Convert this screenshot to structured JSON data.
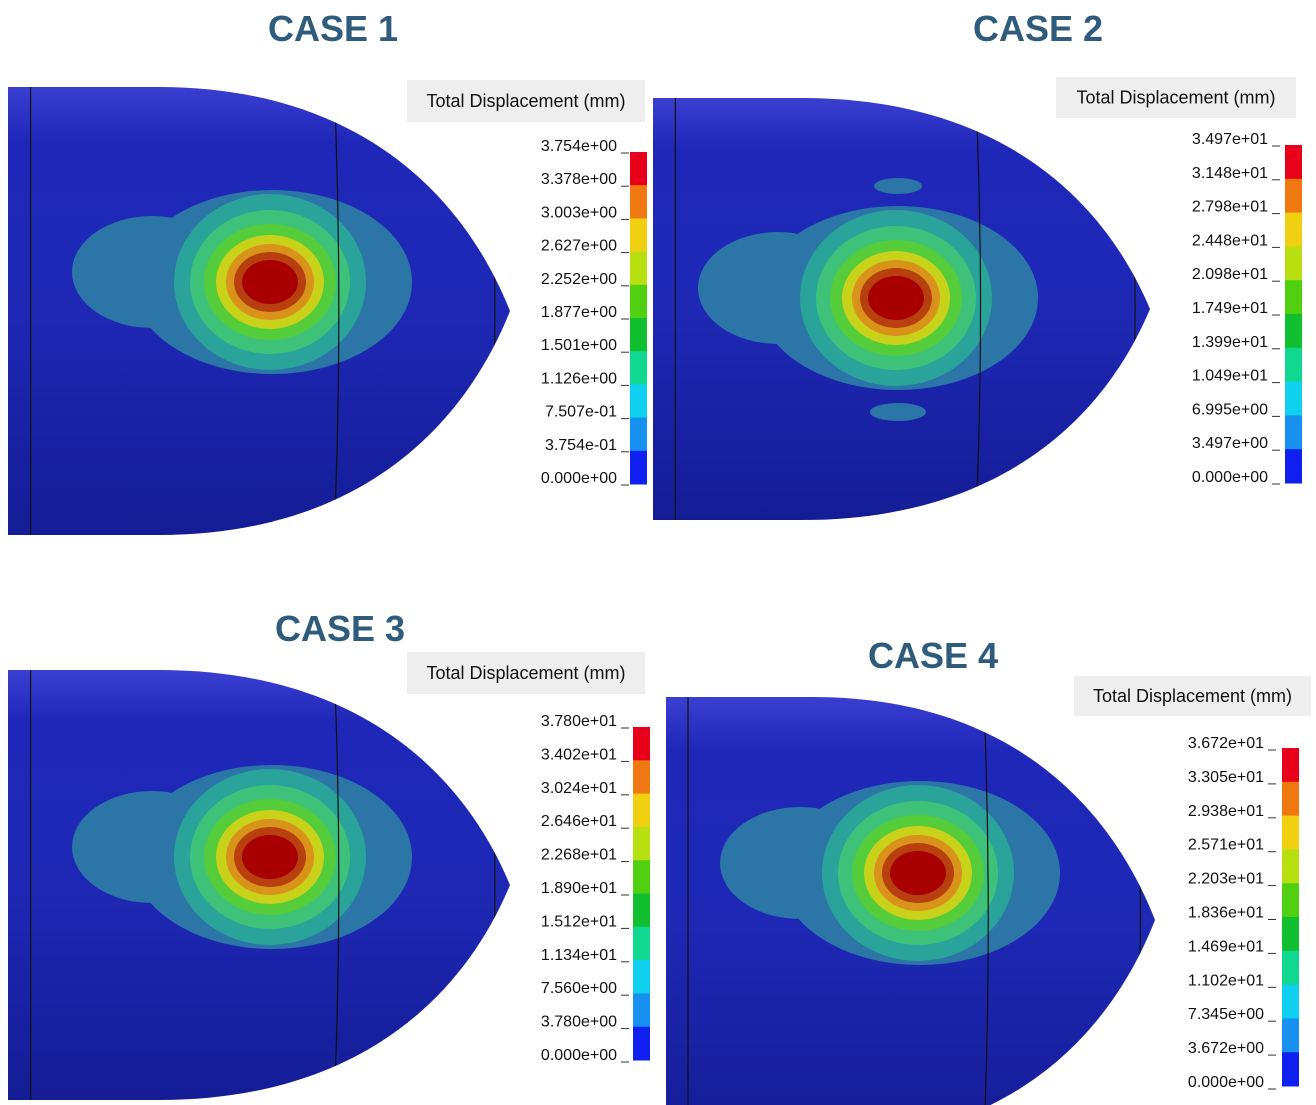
{
  "panels": [
    {
      "title": "CASE 1",
      "legend_title": "Total Displacement (mm)",
      "legend_labels": [
        "3.754e+00",
        "3.378e+00",
        "3.003e+00",
        "2.627e+00",
        "2.252e+00",
        "1.877e+00",
        "1.501e+00",
        "1.126e+00",
        "7.507e-01",
        "3.754e-01",
        "0.000e+00"
      ]
    },
    {
      "title": "CASE 2",
      "legend_title": "Total Displacement (mm)",
      "legend_labels": [
        "3.497e+01",
        "3.148e+01",
        "2.798e+01",
        "2.448e+01",
        "2.098e+01",
        "1.749e+01",
        "1.399e+01",
        "1.049e+01",
        "6.995e+00",
        "3.497e+00",
        "0.000e+00"
      ]
    },
    {
      "title": "CASE 3",
      "legend_title": "Total Displacement (mm)",
      "legend_labels": [
        "3.780e+01",
        "3.402e+01",
        "3.024e+01",
        "2.646e+01",
        "2.268e+01",
        "1.890e+01",
        "1.512e+01",
        "1.134e+01",
        "7.560e+00",
        "3.780e+00",
        "0.000e+00"
      ]
    },
    {
      "title": "CASE 4",
      "legend_title": "Total Displacement (mm)",
      "legend_labels": [
        "3.672e+01",
        "3.305e+01",
        "2.938e+01",
        "2.571e+01",
        "2.203e+01",
        "1.836e+01",
        "1.469e+01",
        "1.102e+01",
        "7.345e+00",
        "3.672e+00",
        "0.000e+00"
      ]
    }
  ]
}
